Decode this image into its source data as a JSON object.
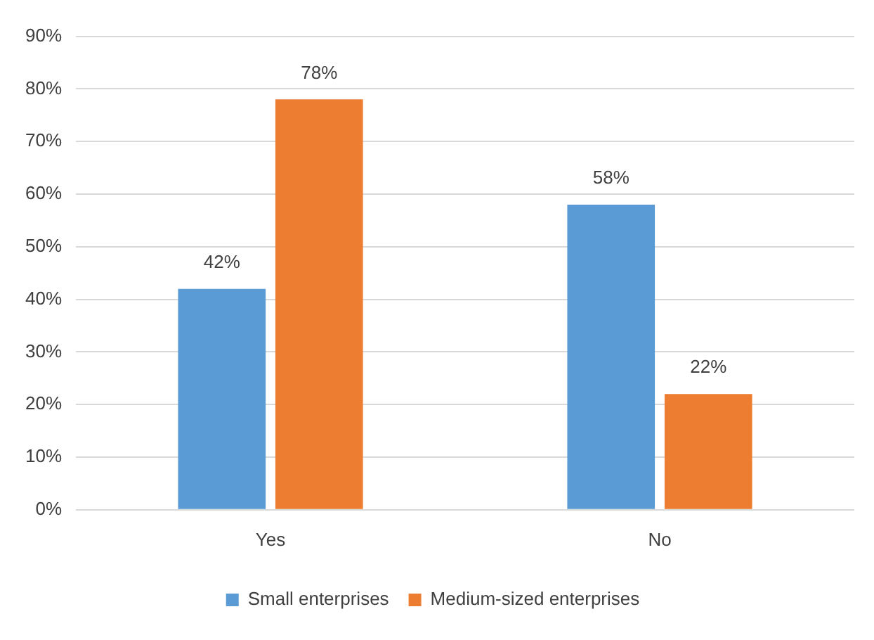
{
  "chart_data": {
    "type": "bar",
    "categories": [
      "Yes",
      "No"
    ],
    "series": [
      {
        "name": "Small enterprises",
        "color": "#5b9bd5",
        "values": [
          42,
          58
        ],
        "value_labels": [
          "42%",
          "58%"
        ]
      },
      {
        "name": "Medium-sized enterprises",
        "color": "#ed7d31",
        "values": [
          78,
          22
        ],
        "value_labels": [
          "78%",
          "22%"
        ]
      }
    ],
    "ylim": [
      0,
      90
    ],
    "yticks": [
      {
        "value": 0,
        "label": "0%"
      },
      {
        "value": 10,
        "label": "10%"
      },
      {
        "value": 20,
        "label": "20%"
      },
      {
        "value": 30,
        "label": "30%"
      },
      {
        "value": 40,
        "label": "40%"
      },
      {
        "value": 50,
        "label": "50%"
      },
      {
        "value": 60,
        "label": "60%"
      },
      {
        "value": 70,
        "label": "70%"
      },
      {
        "value": 80,
        "label": "80%"
      },
      {
        "value": 90,
        "label": "90%"
      }
    ],
    "grid": "y",
    "legend": "bottom"
  }
}
